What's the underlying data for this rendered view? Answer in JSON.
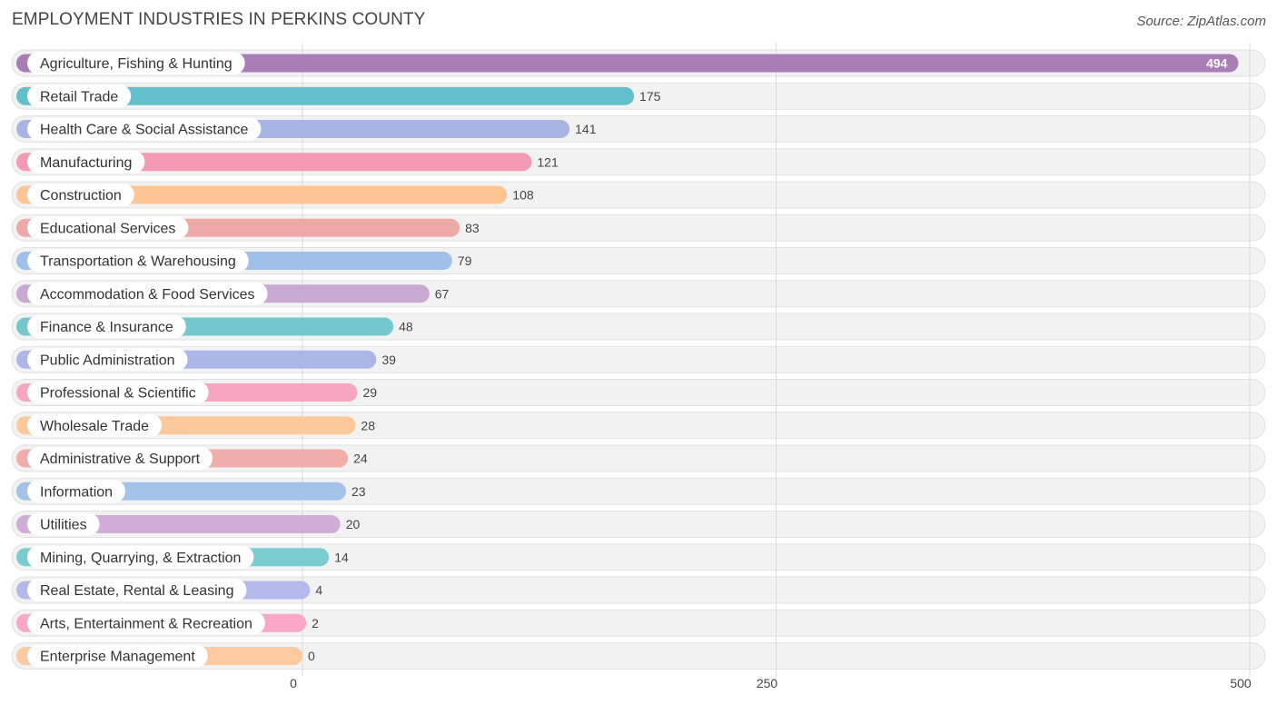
{
  "chart_data": {
    "type": "bar",
    "orientation": "horizontal",
    "title": "EMPLOYMENT INDUSTRIES IN PERKINS COUNTY",
    "source": "Source: ZipAtlas.com",
    "xlim": [
      0,
      500
    ],
    "xticks": [
      0,
      250,
      500
    ],
    "xtick_labels": [
      "0",
      "250",
      "500"
    ],
    "grid": true,
    "categories": [
      "Agriculture, Fishing & Hunting",
      "Retail Trade",
      "Health Care & Social Assistance",
      "Manufacturing",
      "Construction",
      "Educational Services",
      "Transportation & Warehousing",
      "Accommodation & Food Services",
      "Finance & Insurance",
      "Public Administration",
      "Professional & Scientific",
      "Wholesale Trade",
      "Administrative & Support",
      "Information",
      "Utilities",
      "Mining, Quarrying, & Extraction",
      "Real Estate, Rental & Leasing",
      "Arts, Entertainment & Recreation",
      "Enterprise Management"
    ],
    "values": [
      494,
      175,
      141,
      121,
      108,
      83,
      79,
      67,
      48,
      39,
      29,
      28,
      24,
      23,
      20,
      14,
      4,
      2,
      0
    ],
    "value_labels": [
      "494",
      "175",
      "141",
      "121",
      "108",
      "83",
      "79",
      "67",
      "48",
      "39",
      "29",
      "28",
      "24",
      "23",
      "20",
      "14",
      "4",
      "2",
      "0"
    ],
    "colors": [
      "#a97db5",
      "#62c0cd",
      "#a9b4e6",
      "#f59ab6",
      "#fdc593",
      "#eea8a5",
      "#9fc0e9",
      "#c9a9d1",
      "#74c8cd",
      "#adb6e8",
      "#f7a6c2",
      "#fdc99b",
      "#f1ada9",
      "#a3c3ea",
      "#cfadd6",
      "#7accd1",
      "#b3b9eb",
      "#f8a8c4",
      "#fdc99e"
    ]
  }
}
